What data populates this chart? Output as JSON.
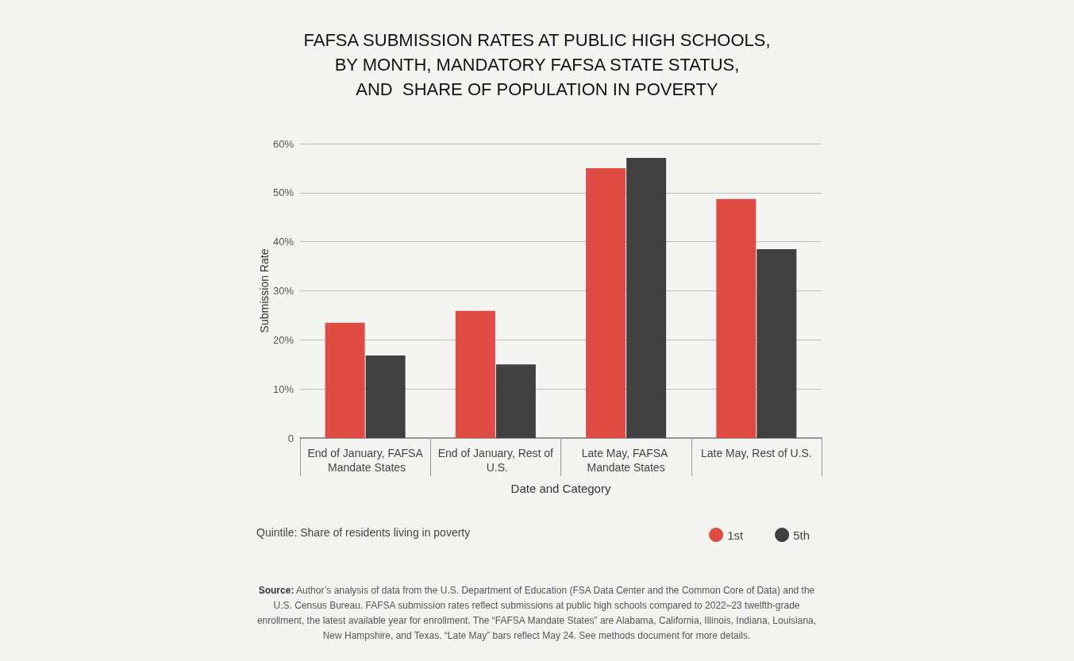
{
  "chart_data": {
    "type": "bar",
    "title": "FAFSA SUBMISSION RATES AT PUBLIC HIGH SCHOOLS,\nBY MONTH, MANDATORY FAFSA STATE STATUS,\nAND  SHARE OF POPULATION IN POVERTY",
    "xlabel": "Date and Category",
    "ylabel": "Submission Rate",
    "legend_title": "Quintile: Share of residents living in poverty",
    "categories": [
      "End of January, FAFSA Mandate States",
      "End of January, Rest of U.S.",
      "Late May, FAFSA Mandate States",
      "Late May, Rest of U.S."
    ],
    "series": [
      {
        "name": "1st",
        "color": "#e04b43",
        "values": [
          23.5,
          25.9,
          55.0,
          48.7
        ]
      },
      {
        "name": "5th",
        "color": "#404040",
        "values": [
          16.8,
          15.0,
          57.1,
          38.5
        ]
      }
    ],
    "ylim": [
      0,
      60
    ],
    "yticks": [
      0,
      {
        "value": 10,
        "label": "10%"
      },
      {
        "value": 20,
        "label": "20%"
      },
      {
        "value": 30,
        "label": "30%"
      },
      {
        "value": 40,
        "label": "40%"
      },
      {
        "value": 50,
        "label": "50%"
      },
      {
        "value": 60,
        "label": "60%"
      }
    ],
    "grid": "y",
    "legend": "bottom right",
    "annotations": [
      "Source: Author’s analysis of data from the U.S. Department of Education (FSA Data Center and the Common Core of Data) and the U.S. Census Bureau. FAFSA submission rates reflect submissions at public high schools compared to 2022–23 twelfth-grade enrollment, the latest available year for enrollment. The “FAFSA Mandate States” are Alabama, California, Illinois, Indiana, Louisiana, New Hampshire, and Texas. “Late May” bars reflect May 24. See methods document for more details."
    ]
  }
}
